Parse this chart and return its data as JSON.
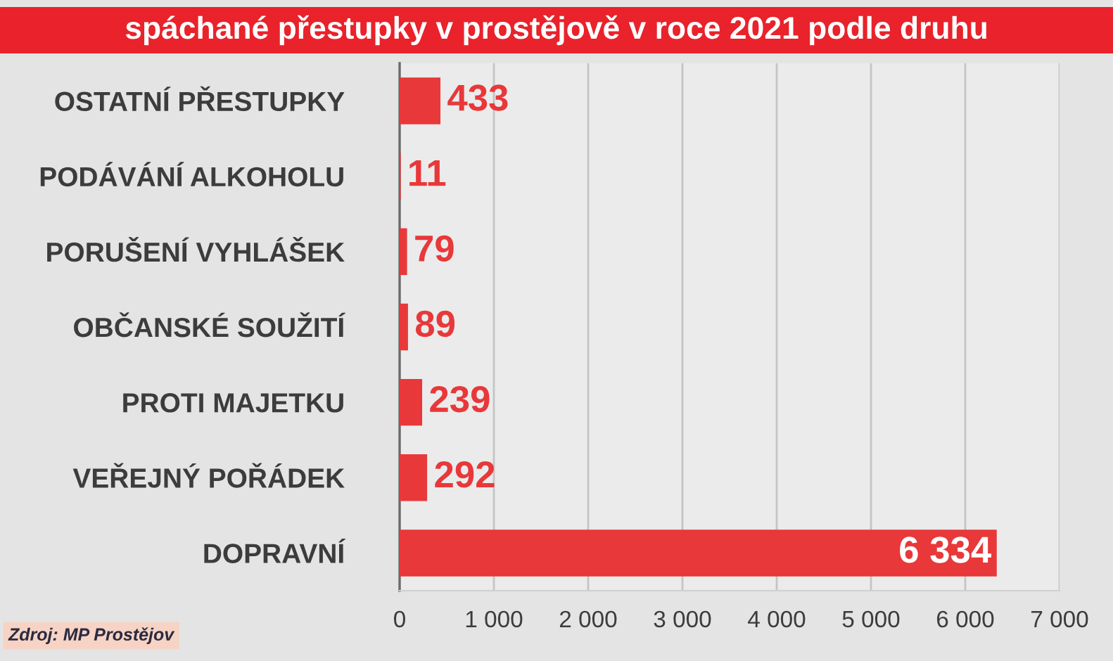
{
  "chart_data": {
    "type": "bar",
    "orientation": "horizontal",
    "title": "spáchané přestupky v prostějově v roce 2021 podle druhu",
    "categories": [
      "OSTATNÍ PŘESTUPKY",
      "PODÁVÁNÍ ALKOHOLU",
      "PORUŠENÍ VYHLÁŠEK",
      "OBČANSKÉ SOUŽITÍ",
      "PROTI MAJETKU",
      "VEŘEJNÝ POŘÁDEK",
      "DOPRAVNÍ"
    ],
    "values": [
      433,
      11,
      79,
      89,
      239,
      292,
      6334
    ],
    "value_labels": [
      "433",
      "11",
      "79",
      "89",
      "239",
      "292",
      "6 334"
    ],
    "color": "#e8383a",
    "xlim": [
      0,
      7000
    ],
    "xticks": [
      0,
      {
        "value": 1000,
        "label": "1 000"
      },
      {
        "value": 2000,
        "label": "2 000"
      },
      {
        "value": 3000,
        "label": "3 000"
      },
      {
        "value": 4000,
        "label": "4 000"
      },
      {
        "value": 5000,
        "label": "5 000"
      },
      {
        "value": 6000,
        "label": "6 000"
      },
      {
        "value": 7000,
        "label": "7 000"
      }
    ],
    "grid": "x",
    "annotations": [
      "Zdroj: MP Prostějov"
    ]
  }
}
